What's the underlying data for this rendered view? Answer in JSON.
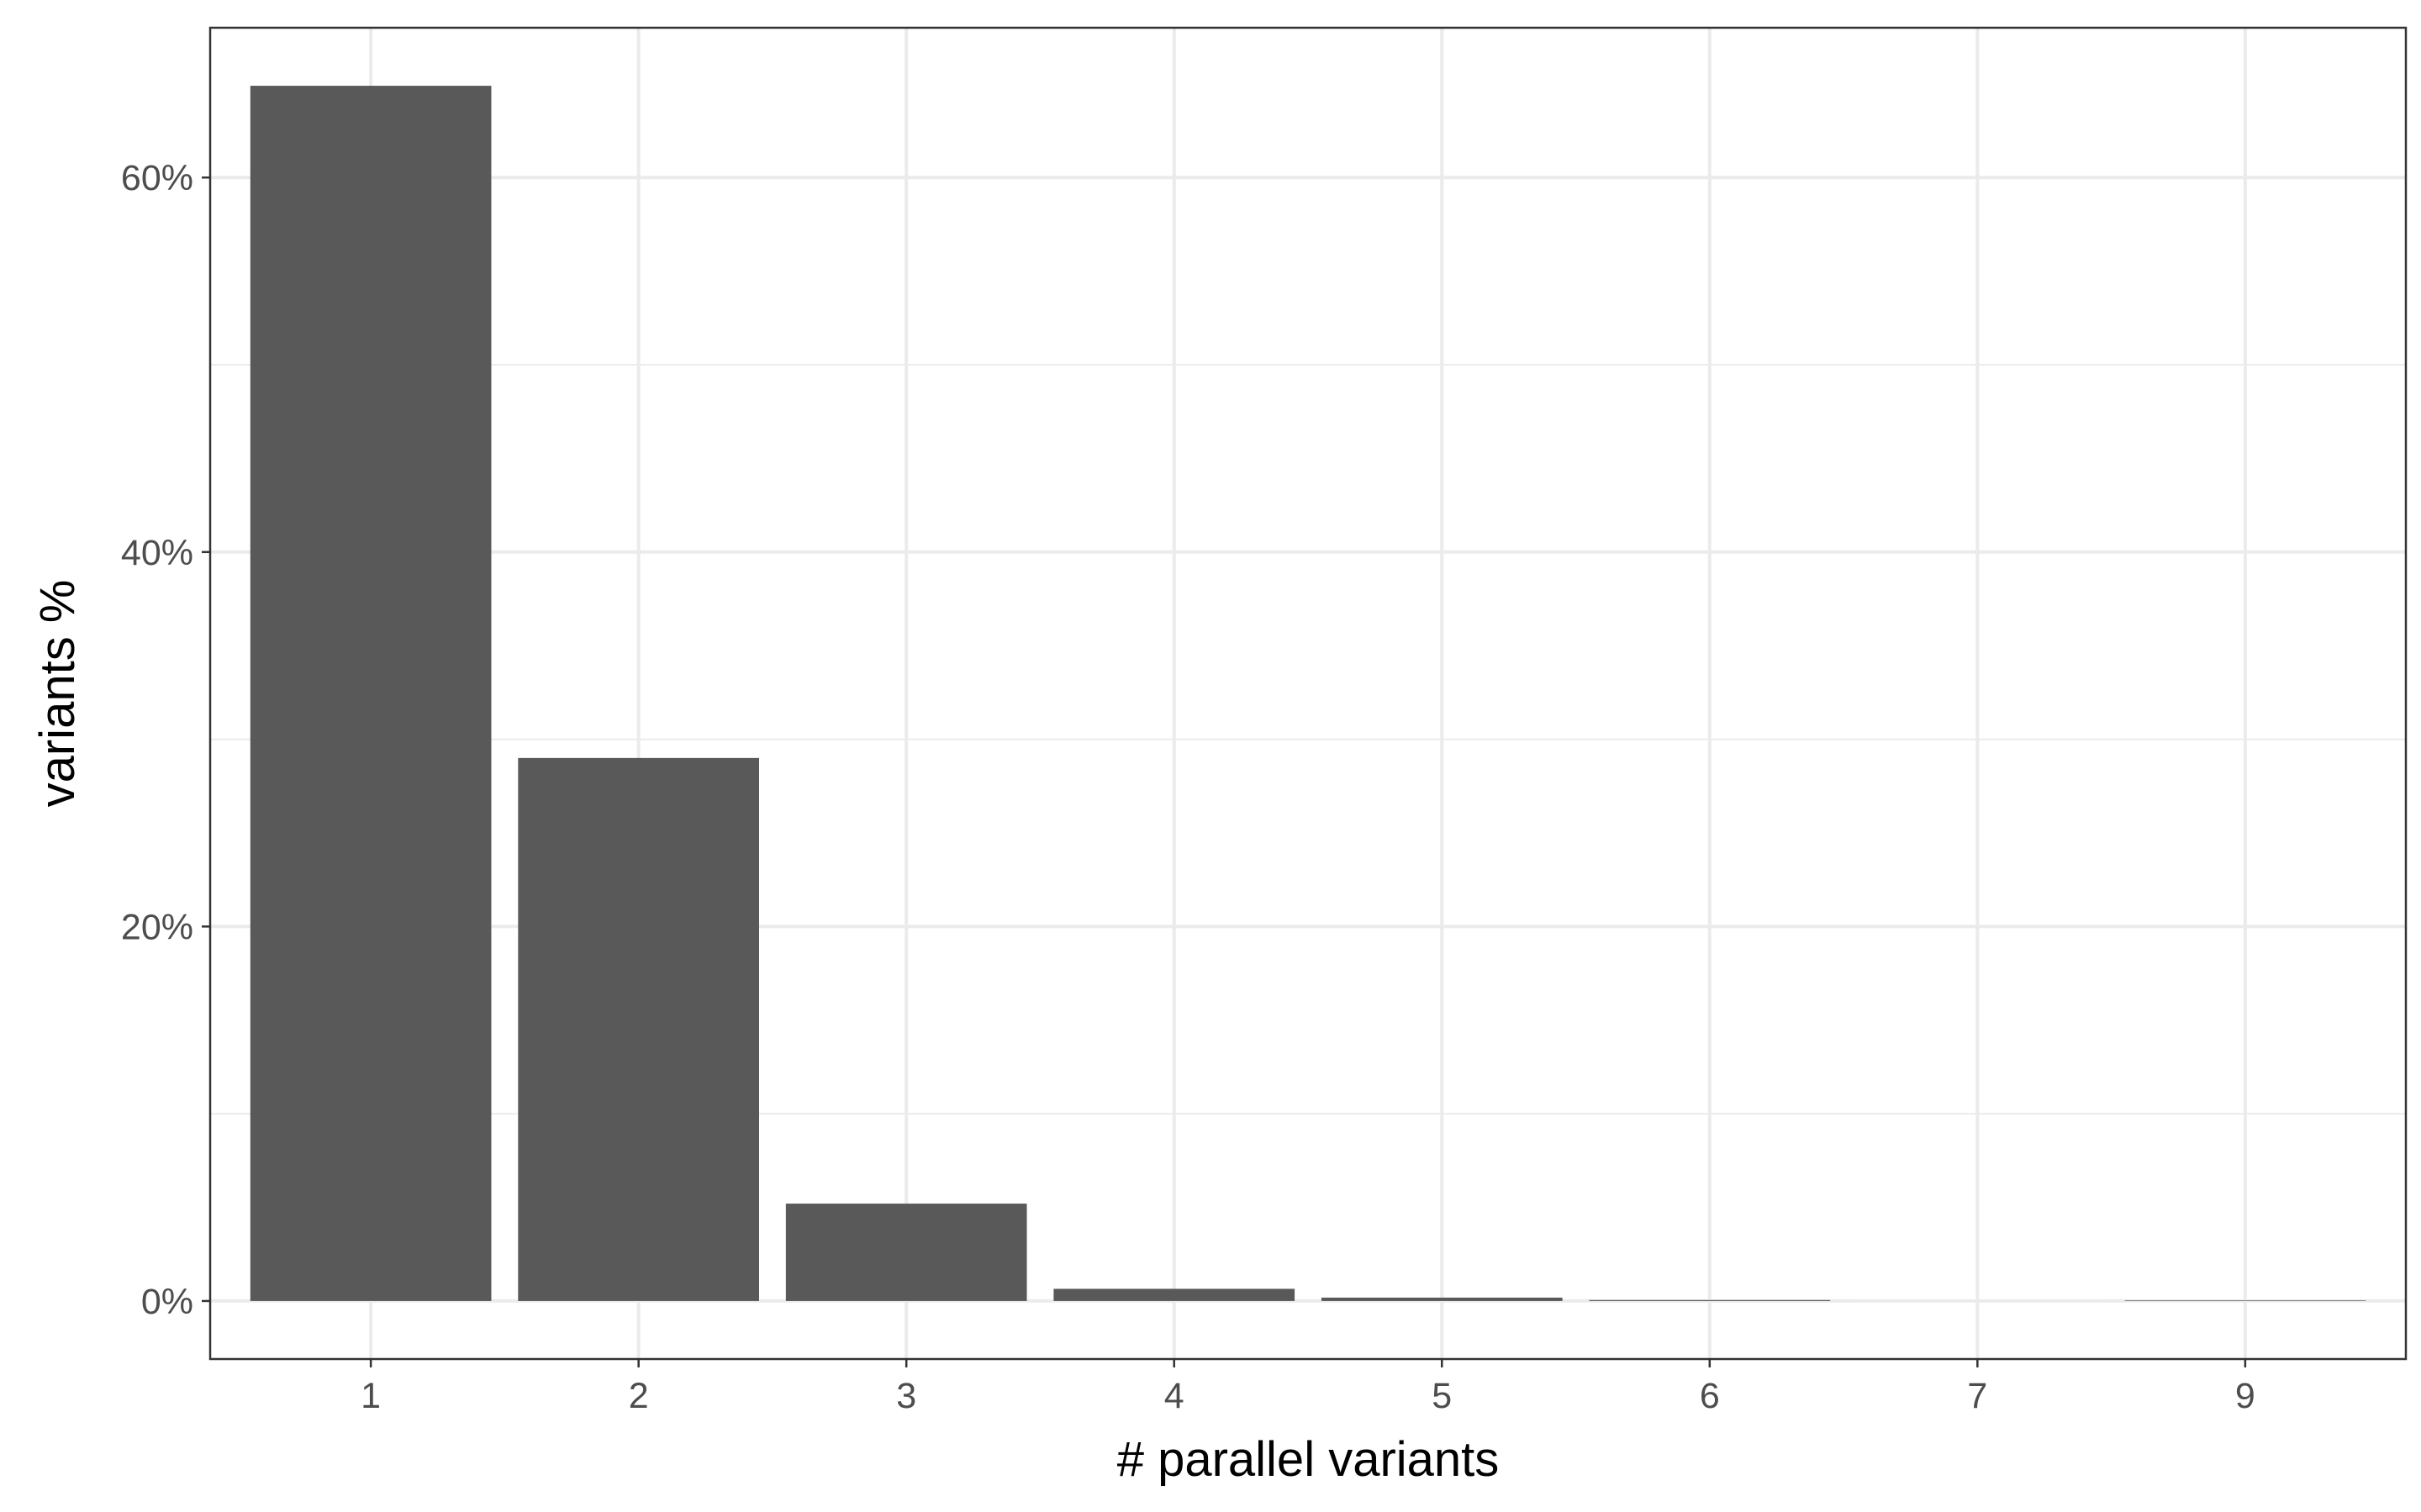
{
  "chart_data": {
    "type": "bar",
    "title": "",
    "xlabel": "# parallel variants",
    "ylabel": "variants %",
    "categories": [
      "1",
      "2",
      "3",
      "4",
      "5",
      "6",
      "7",
      "9"
    ],
    "values": [
      64.9,
      29.0,
      5.2,
      0.65,
      0.18,
      0.05,
      0.0,
      0.03
    ],
    "ylim": [
      -3.1,
      68
    ],
    "yticks": [
      0,
      20,
      40,
      60
    ],
    "ytick_labels": [
      "0%",
      "20%",
      "40%",
      "60%"
    ],
    "grid": true,
    "legend": "none",
    "colors": {
      "bar": "#595959",
      "grid": "#ebebeb",
      "panel_border": "#333333",
      "tick_label": "#4d4d4d",
      "axis_title": "#000000"
    }
  }
}
